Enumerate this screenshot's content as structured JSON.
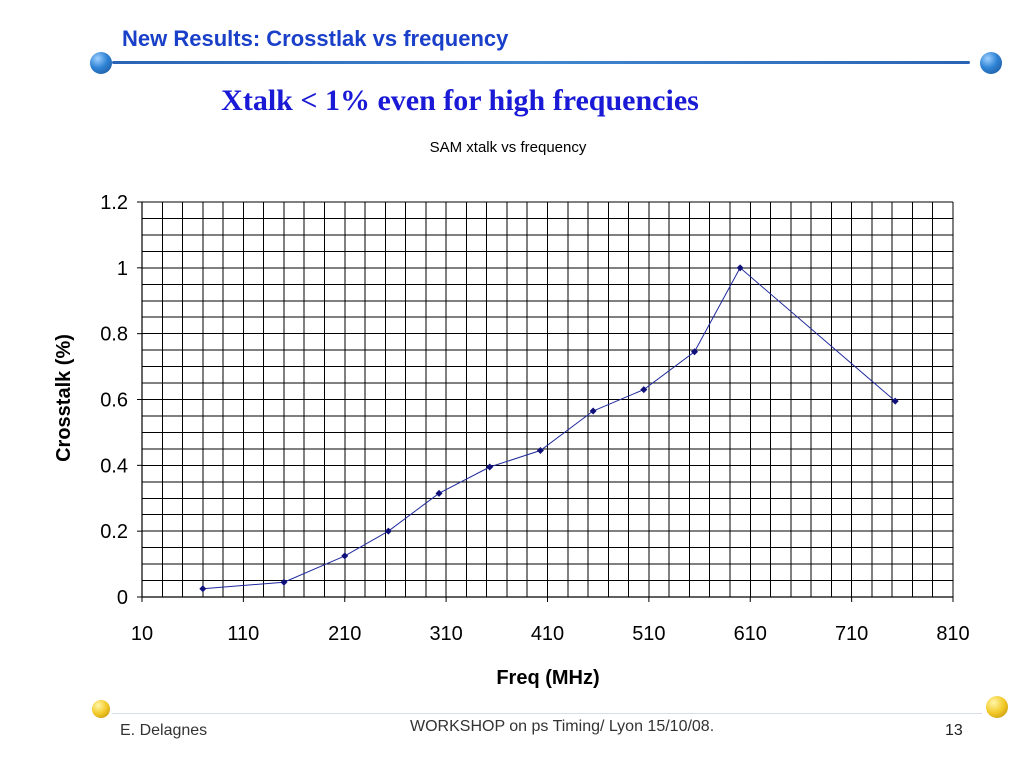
{
  "slide": {
    "title": "New Results: Crosstlak vs frequency",
    "subtitle": "Xtalk < 1% even for high frequencies",
    "footer_author": "E. Delagnes",
    "footer_event": "WORKSHOP on ps Timing/ Lyon 15/10/08.",
    "page_number": "13"
  },
  "colors": {
    "title": "#1a3fc8",
    "subtitle": "#1a1ad6",
    "series_line": "#1f2a9c",
    "grid": "#000000"
  },
  "chart_data": {
    "type": "line",
    "title": "SAM xtalk vs frequency",
    "xlabel": "Freq (MHz)",
    "ylabel": "Crosstalk (%)",
    "xlim": [
      10,
      810
    ],
    "ylim": [
      0,
      1.2
    ],
    "x_ticks": [
      "10",
      "110",
      "210",
      "310",
      "410",
      "510",
      "610",
      "710",
      "810"
    ],
    "y_ticks": [
      "0",
      "0.2",
      "0.4",
      "0.6",
      "0.8",
      "1",
      "1.2"
    ],
    "grid": true,
    "legend": "none",
    "series": [
      {
        "x": [
          70,
          150,
          210,
          253,
          303,
          353,
          403,
          455,
          505,
          555,
          600,
          753
        ],
        "y": [
          0.025,
          0.045,
          0.125,
          0.2,
          0.315,
          0.395,
          0.445,
          0.565,
          0.63,
          0.745,
          1.0,
          0.595
        ]
      }
    ]
  }
}
